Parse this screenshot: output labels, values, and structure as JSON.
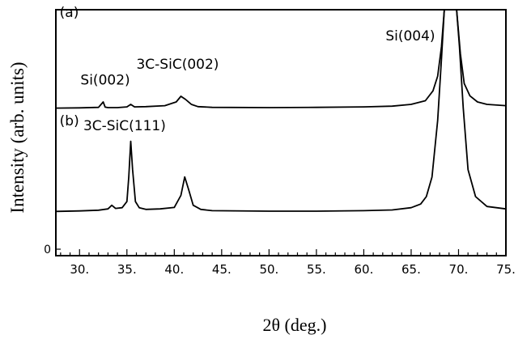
{
  "chart_data": {
    "type": "line",
    "title": "",
    "xlabel": "2θ (deg.)",
    "ylabel": "Intensity (arb. units)",
    "xlim": [
      27.5,
      75
    ],
    "xticks": [
      "30.",
      "35.",
      "40.",
      "45.",
      "50.",
      "55.",
      "60.",
      "65.",
      "70.",
      "75."
    ],
    "xtick_values": [
      30,
      35,
      40,
      45,
      50,
      55,
      60,
      65,
      70,
      75
    ],
    "ylim": [
      0,
      100
    ],
    "yticks": [
      "0"
    ],
    "ytick_values": [
      0
    ],
    "grid": false,
    "legend": "none",
    "series": [
      {
        "label": "(a)",
        "color": "#000000",
        "x": [
          27.5,
          30.0,
          32.0,
          32.5,
          32.7,
          33.0,
          34.0,
          35.0,
          35.4,
          35.8,
          37.0,
          39.0,
          40.2,
          40.7,
          41.2,
          41.8,
          42.5,
          44.0,
          50.0,
          55.0,
          60.0,
          63.0,
          65.0,
          66.5,
          67.3,
          67.8,
          68.2,
          68.5,
          68.8,
          69.3,
          69.8,
          70.2,
          70.6,
          71.2,
          72.0,
          73.0,
          75.0
        ],
        "y": [
          60.0,
          60.1,
          60.3,
          62.5,
          60.4,
          60.2,
          60.2,
          60.5,
          61.5,
          60.5,
          60.6,
          61.0,
          62.5,
          64.8,
          63.5,
          61.5,
          60.6,
          60.3,
          60.2,
          60.3,
          60.5,
          60.8,
          61.5,
          63.0,
          67.0,
          73.0,
          85.0,
          100.0,
          100.0,
          100.0,
          100.0,
          82.0,
          70.0,
          65.0,
          62.5,
          61.5,
          61.0
        ]
      },
      {
        "label": "(b)",
        "color": "#000000",
        "x": [
          27.5,
          30.0,
          32.0,
          33.0,
          33.4,
          33.8,
          34.5,
          35.0,
          35.2,
          35.4,
          35.6,
          35.9,
          36.3,
          37.0,
          38.5,
          40.0,
          40.7,
          41.1,
          41.5,
          42.0,
          42.8,
          44.0,
          50.0,
          55.0,
          60.0,
          63.0,
          65.0,
          66.0,
          66.6,
          67.2,
          67.8,
          68.2,
          68.5,
          68.8,
          69.3,
          69.8,
          70.1,
          70.5,
          71.0,
          71.8,
          73.0,
          75.0
        ],
        "y": [
          18.0,
          18.2,
          18.5,
          19.0,
          20.5,
          19.2,
          19.5,
          22.0,
          32.0,
          46.5,
          35.0,
          22.0,
          19.5,
          18.8,
          19.0,
          19.6,
          24.5,
          32.0,
          27.0,
          20.5,
          18.8,
          18.3,
          18.1,
          18.1,
          18.3,
          18.6,
          19.5,
          21.0,
          24.0,
          32.0,
          55.0,
          80.0,
          100.0,
          100.0,
          100.0,
          100.0,
          85.0,
          60.0,
          35.0,
          24.0,
          20.0,
          19.0
        ]
      }
    ],
    "annotations": [
      {
        "text": "(a)",
        "x": 27.9,
        "y": 97.0
      },
      {
        "text": "Si(002)",
        "x": 30.1,
        "y": 69.5
      },
      {
        "text": "3C-SiC(002)",
        "x": 36.0,
        "y": 76.0
      },
      {
        "text": "Si(004)",
        "x": 62.3,
        "y": 87.5
      },
      {
        "text": "(b)",
        "x": 27.9,
        "y": 53.0
      },
      {
        "text": "3C-SiC(111)",
        "x": 30.4,
        "y": 51.0
      }
    ]
  }
}
